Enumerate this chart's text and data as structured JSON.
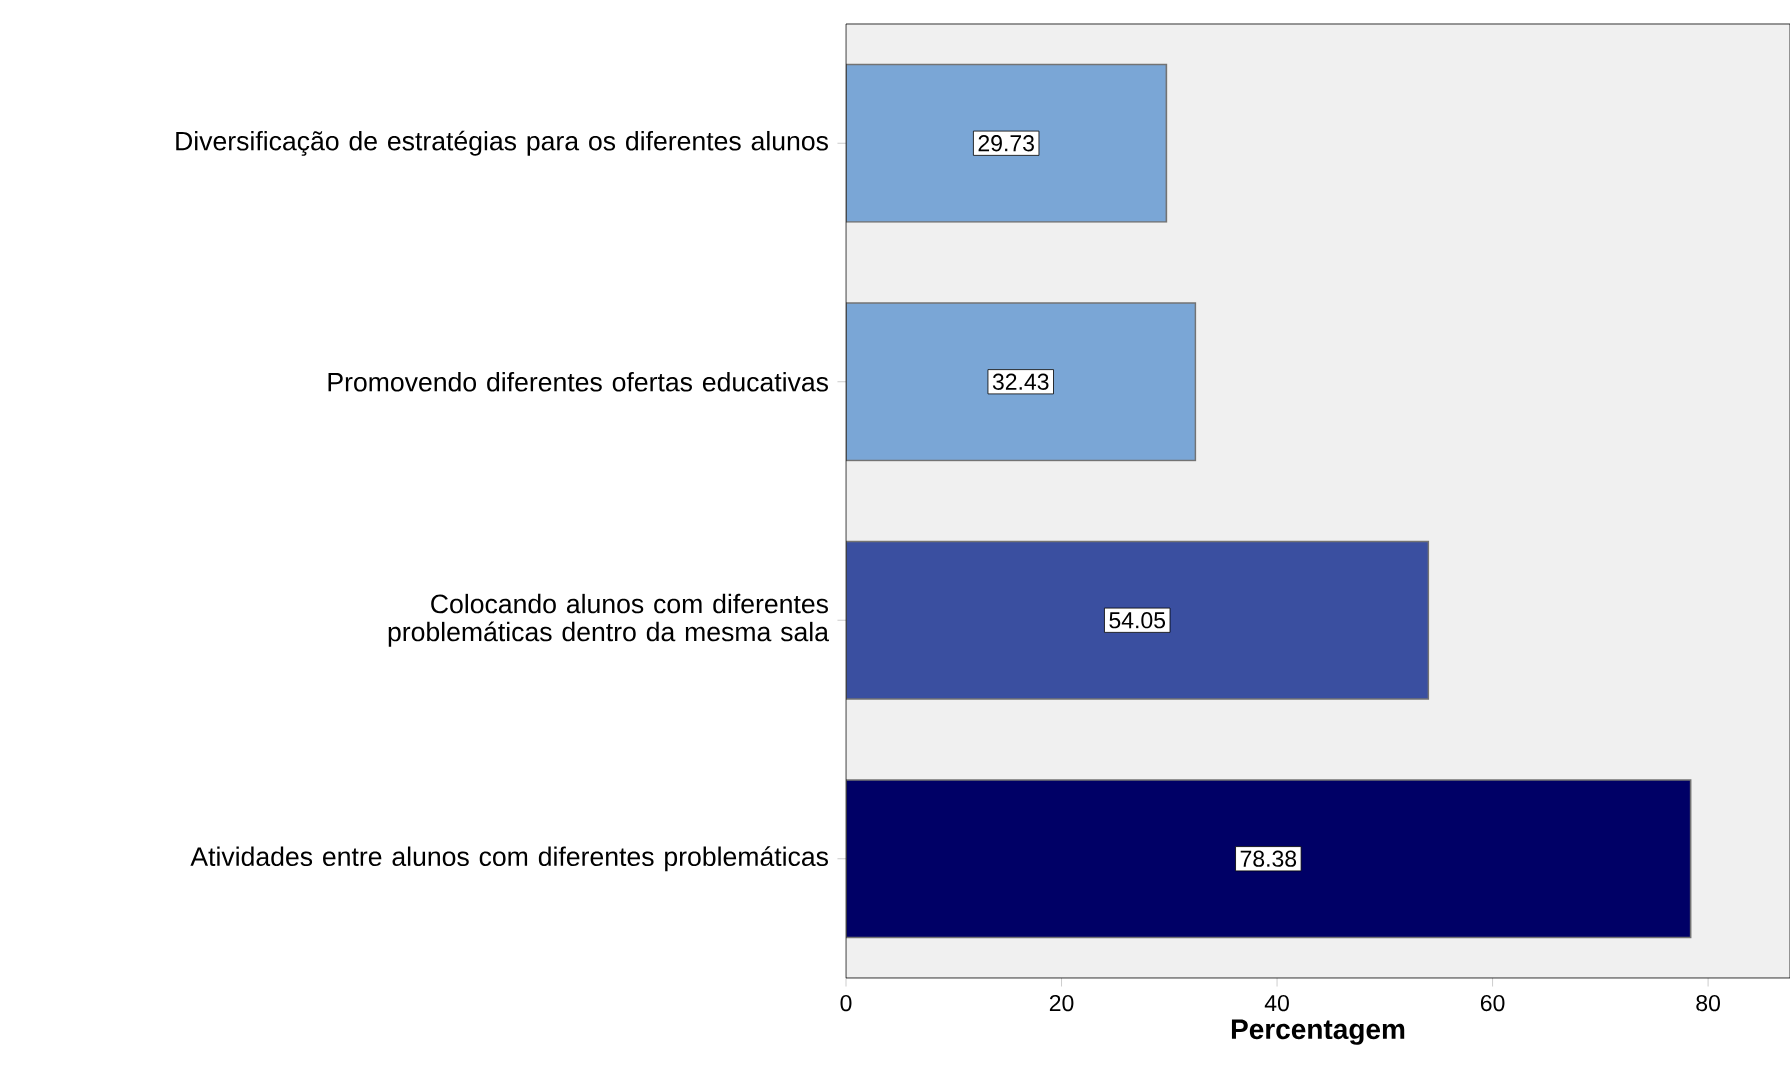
{
  "chart_data": {
    "type": "bar",
    "orientation": "horizontal",
    "xlabel": "Percentagem",
    "categories": [
      "Diversificação de estratégias para os diferentes alunos",
      "Promovendo diferentes ofertas educativas",
      "Colocando alunos com diferentes problemáticas dentro da mesma sala",
      "Atividades entre alunos com diferentes problemáticas"
    ],
    "values": [
      29.73,
      32.43,
      54.05,
      78.38
    ],
    "value_labels": [
      "29.73",
      "32.43",
      "54.05",
      "78.38"
    ],
    "colors": [
      "#7aa6d6",
      "#7aa6d6",
      "#3a4fa0",
      "#000066"
    ],
    "xlim": [
      0,
      87.6
    ],
    "xticks": [
      0,
      20,
      40,
      60,
      80
    ],
    "grid": false
  }
}
